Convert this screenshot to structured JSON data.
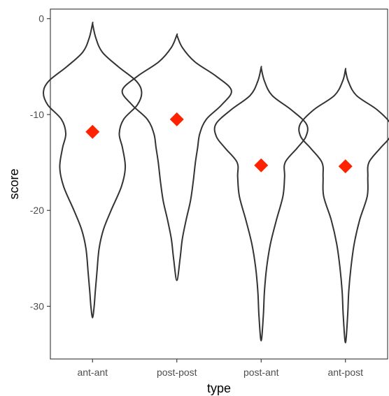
{
  "chart_data": {
    "type": "violin",
    "xlabel": "type",
    "ylabel": "score",
    "categories": [
      "ant-ant",
      "post-post",
      "post-ant",
      "ant-post"
    ],
    "ylim": [
      -35.5,
      1.0
    ],
    "yticks": [
      0,
      -10,
      -20,
      -30
    ],
    "ytick_labels": [
      "0",
      "-10",
      "-20",
      "-30"
    ],
    "grid": false,
    "mean_marker": {
      "shape": "diamond",
      "color": "#ff2200"
    },
    "means": [
      -11.8,
      -10.5,
      -15.3,
      -15.4
    ],
    "violins": [
      {
        "category": "ant-ant",
        "y_max": -0.5,
        "y_min": -31.2,
        "profile": [
          [
            -0.5,
            0.0
          ],
          [
            -2.0,
            0.06
          ],
          [
            -3.5,
            0.18
          ],
          [
            -5.0,
            0.47
          ],
          [
            -6.5,
            0.8
          ],
          [
            -7.7,
            0.9
          ],
          [
            -9.0,
            0.82
          ],
          [
            -10.5,
            0.57
          ],
          [
            -12.0,
            0.49
          ],
          [
            -13.5,
            0.55
          ],
          [
            -15.5,
            0.6
          ],
          [
            -17.5,
            0.53
          ],
          [
            -20.0,
            0.34
          ],
          [
            -22.0,
            0.2
          ],
          [
            -24.0,
            0.12
          ],
          [
            -26.5,
            0.08
          ],
          [
            -28.5,
            0.05
          ],
          [
            -30.0,
            0.03
          ],
          [
            -31.2,
            0.0
          ]
        ]
      },
      {
        "category": "post-post",
        "y_max": -1.7,
        "y_min": -27.3,
        "profile": [
          [
            -1.7,
            0.0
          ],
          [
            -3.0,
            0.1
          ],
          [
            -4.5,
            0.33
          ],
          [
            -6.0,
            0.72
          ],
          [
            -7.5,
            1.0
          ],
          [
            -9.0,
            0.82
          ],
          [
            -10.5,
            0.54
          ],
          [
            -12.0,
            0.42
          ],
          [
            -13.5,
            0.38
          ],
          [
            -15.0,
            0.34
          ],
          [
            -17.0,
            0.3
          ],
          [
            -19.0,
            0.25
          ],
          [
            -21.0,
            0.17
          ],
          [
            -23.0,
            0.1
          ],
          [
            -25.0,
            0.06
          ],
          [
            -27.3,
            0.0
          ]
        ]
      },
      {
        "category": "post-ant",
        "y_max": -5.1,
        "y_min": -33.6,
        "profile": [
          [
            -5.1,
            0.0
          ],
          [
            -6.5,
            0.06
          ],
          [
            -8.0,
            0.2
          ],
          [
            -9.5,
            0.55
          ],
          [
            -11.0,
            0.83
          ],
          [
            -12.3,
            0.82
          ],
          [
            -13.5,
            0.66
          ],
          [
            -15.0,
            0.44
          ],
          [
            -16.5,
            0.43
          ],
          [
            -18.5,
            0.4
          ],
          [
            -21.0,
            0.28
          ],
          [
            -23.5,
            0.17
          ],
          [
            -26.0,
            0.1
          ],
          [
            -28.5,
            0.06
          ],
          [
            -31.0,
            0.04
          ],
          [
            -33.6,
            0.0
          ]
        ]
      },
      {
        "category": "ant-post",
        "y_max": -5.3,
        "y_min": -33.8,
        "profile": [
          [
            -5.3,
            0.0
          ],
          [
            -6.5,
            0.05
          ],
          [
            -8.0,
            0.2
          ],
          [
            -9.5,
            0.58
          ],
          [
            -11.0,
            0.83
          ],
          [
            -12.3,
            0.82
          ],
          [
            -13.5,
            0.64
          ],
          [
            -15.0,
            0.43
          ],
          [
            -16.5,
            0.41
          ],
          [
            -18.5,
            0.4
          ],
          [
            -21.0,
            0.26
          ],
          [
            -23.5,
            0.16
          ],
          [
            -26.0,
            0.1
          ],
          [
            -28.5,
            0.06
          ],
          [
            -31.0,
            0.04
          ],
          [
            -33.8,
            0.0
          ]
        ]
      }
    ]
  }
}
